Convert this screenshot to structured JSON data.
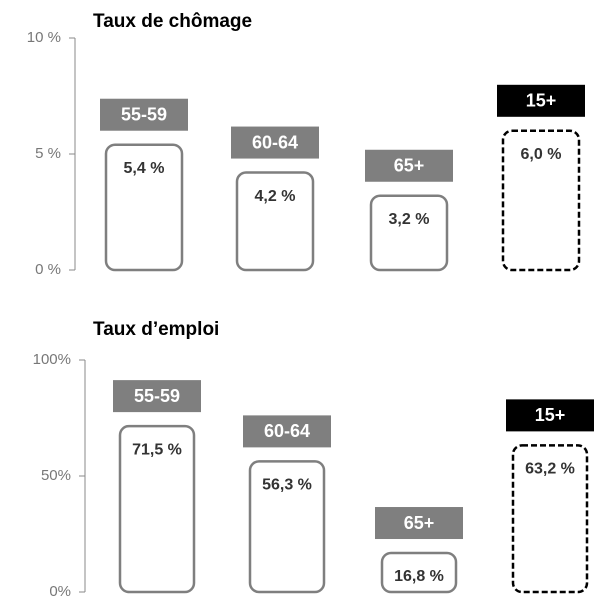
{
  "chart_data": [
    {
      "type": "bar",
      "title": "Taux de chômage",
      "categories": [
        "55-59",
        "60-64",
        "65+",
        "15+"
      ],
      "values": [
        5.4,
        4.2,
        3.2,
        6.0
      ],
      "value_labels": [
        "5,4 %",
        "4,2 %",
        "3,2 %",
        "6,0 %"
      ],
      "label_colors": [
        "#7f7f7f",
        "#7f7f7f",
        "#7f7f7f",
        "#000000"
      ],
      "bar_colors": [
        "#7f7f7f",
        "#7f7f7f",
        "#7f7f7f",
        "#000000"
      ],
      "dashed": [
        false,
        false,
        false,
        true
      ],
      "ylim": [
        0,
        10
      ],
      "yticks": [
        {
          "value": 0,
          "label": "0 %"
        },
        {
          "value": 5,
          "label": "5 %"
        },
        {
          "value": 10,
          "label": "10 %"
        }
      ]
    },
    {
      "type": "bar",
      "title": "Taux d’emploi",
      "categories": [
        "55-59",
        "60-64",
        "65+",
        "15+"
      ],
      "values": [
        71.5,
        56.3,
        16.8,
        63.2
      ],
      "value_labels": [
        "71,5 %",
        "56,3 %",
        "16,8 %",
        "63,2 %"
      ],
      "label_colors": [
        "#7f7f7f",
        "#7f7f7f",
        "#7f7f7f",
        "#000000"
      ],
      "bar_colors": [
        "#7f7f7f",
        "#7f7f7f",
        "#7f7f7f",
        "#000000"
      ],
      "dashed": [
        false,
        false,
        false,
        true
      ],
      "ylim": [
        0,
        100
      ],
      "yticks": [
        {
          "value": 0,
          "label": "0%"
        },
        {
          "value": 50,
          "label": "50%"
        },
        {
          "value": 100,
          "label": "100%"
        }
      ]
    }
  ]
}
